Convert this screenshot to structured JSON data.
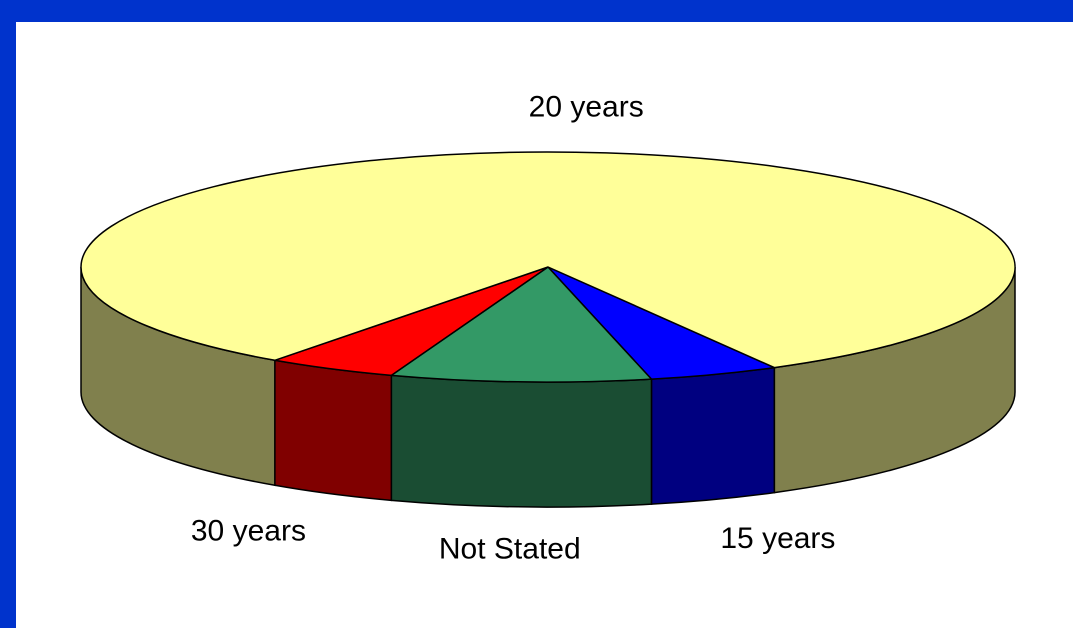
{
  "chart_data": {
    "type": "pie3d",
    "categories": [
      "15 years",
      "Not Stated",
      "30 years",
      "20 years"
    ],
    "values": [
      4.5,
      9,
      4.5,
      82
    ],
    "colors": [
      "#0000ff",
      "#339966",
      "#ff0000",
      "#ffff99"
    ]
  }
}
